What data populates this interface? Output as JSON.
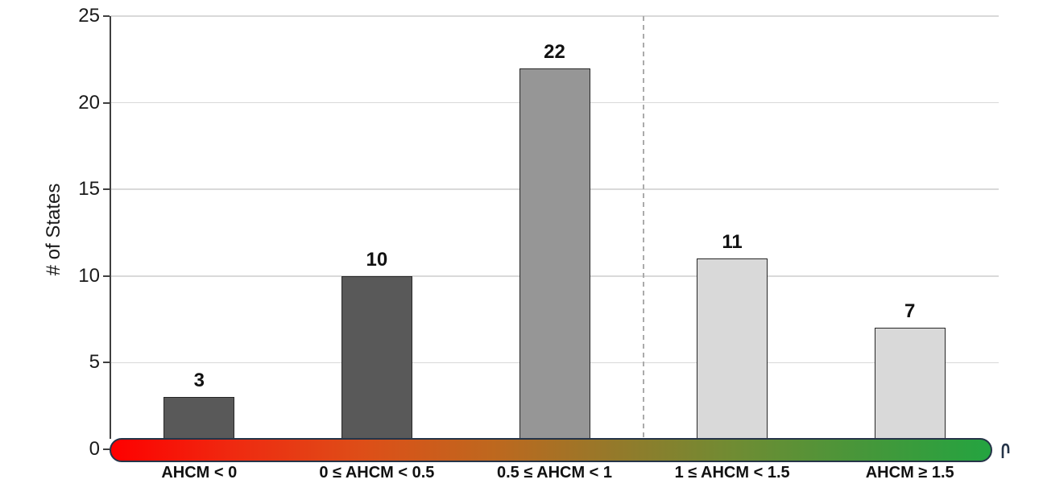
{
  "chart_data": {
    "type": "bar",
    "title": "",
    "xlabel": "",
    "ylabel": "# of States",
    "ylim": [
      0,
      25
    ],
    "yticks": [
      25,
      20,
      15,
      10,
      5,
      0
    ],
    "grid": true,
    "legend_position": "none",
    "categories": [
      "AHCM < 0",
      "0 ≤ AHCM < 0.5",
      "0.5 ≤ AHCM < 1",
      "1 ≤ AHCM < 1.5",
      "AHCM ≥ 1.5"
    ],
    "values": [
      3,
      10,
      22,
      11,
      7
    ],
    "bar_colors": [
      "#595959",
      "#595959",
      "#969696",
      "#d9d9d9",
      "#d9d9d9"
    ],
    "bar_border_color": "#262626",
    "divider_after_category_index": 2,
    "divider_style": "dashed",
    "divider_color": "#ababab",
    "gridline_color": "#d9d9d9",
    "axis_color": "#3f3f3f",
    "text_color": "#1a1a1a",
    "x_axis_gradient_colors": [
      "#fe0000",
      "#ef2a10",
      "#dd4f18",
      "#bf671e",
      "#95792a",
      "#6f8c33",
      "#45973a",
      "#24a440"
    ],
    "x_axis_gradient_border_color": "#253448"
  }
}
